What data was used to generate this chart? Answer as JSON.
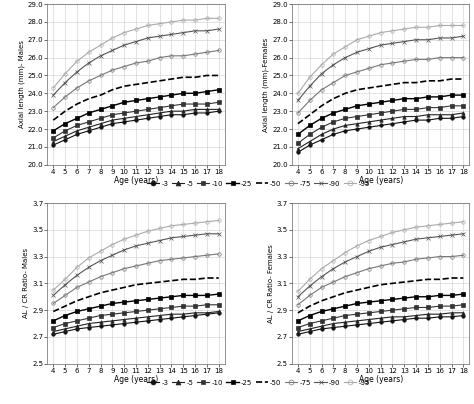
{
  "ages": [
    4,
    5,
    6,
    7,
    8,
    9,
    10,
    11,
    12,
    13,
    14,
    15,
    16,
    17,
    18
  ],
  "males_al": {
    "p3": [
      21.1,
      21.4,
      21.7,
      21.9,
      22.1,
      22.3,
      22.4,
      22.5,
      22.6,
      22.7,
      22.8,
      22.8,
      22.9,
      22.9,
      23.0
    ],
    "p5": [
      21.3,
      21.6,
      21.9,
      22.1,
      22.3,
      22.5,
      22.6,
      22.7,
      22.8,
      22.9,
      23.0,
      23.0,
      23.1,
      23.1,
      23.1
    ],
    "p10": [
      21.5,
      21.9,
      22.2,
      22.4,
      22.6,
      22.8,
      22.9,
      23.0,
      23.1,
      23.2,
      23.3,
      23.4,
      23.4,
      23.4,
      23.5
    ],
    "p25": [
      21.9,
      22.3,
      22.6,
      22.9,
      23.1,
      23.3,
      23.5,
      23.6,
      23.7,
      23.8,
      23.9,
      24.0,
      24.0,
      24.1,
      24.2
    ],
    "p50": [
      22.5,
      23.0,
      23.4,
      23.7,
      23.9,
      24.2,
      24.4,
      24.5,
      24.6,
      24.7,
      24.8,
      24.9,
      24.9,
      25.0,
      25.0
    ],
    "p75": [
      23.2,
      23.8,
      24.3,
      24.7,
      25.0,
      25.3,
      25.5,
      25.7,
      25.8,
      26.0,
      26.1,
      26.1,
      26.2,
      26.3,
      26.4
    ],
    "p90": [
      23.9,
      24.6,
      25.2,
      25.7,
      26.1,
      26.4,
      26.7,
      26.9,
      27.1,
      27.2,
      27.3,
      27.4,
      27.5,
      27.5,
      27.6
    ],
    "p95": [
      24.3,
      25.1,
      25.8,
      26.3,
      26.7,
      27.1,
      27.4,
      27.6,
      27.8,
      27.9,
      28.0,
      28.1,
      28.1,
      28.2,
      28.2
    ]
  },
  "females_al": {
    "p3": [
      20.7,
      21.1,
      21.4,
      21.7,
      21.9,
      22.0,
      22.1,
      22.2,
      22.3,
      22.4,
      22.5,
      22.5,
      22.6,
      22.6,
      22.7
    ],
    "p5": [
      20.9,
      21.3,
      21.7,
      22.0,
      22.2,
      22.3,
      22.4,
      22.5,
      22.6,
      22.7,
      22.7,
      22.8,
      22.8,
      22.8,
      22.9
    ],
    "p10": [
      21.2,
      21.7,
      22.1,
      22.4,
      22.6,
      22.7,
      22.8,
      22.9,
      23.0,
      23.1,
      23.1,
      23.2,
      23.2,
      23.3,
      23.3
    ],
    "p25": [
      21.7,
      22.2,
      22.6,
      22.9,
      23.1,
      23.3,
      23.4,
      23.5,
      23.6,
      23.7,
      23.7,
      23.8,
      23.8,
      23.9,
      23.9
    ],
    "p50": [
      22.3,
      22.8,
      23.3,
      23.7,
      24.0,
      24.2,
      24.3,
      24.4,
      24.5,
      24.6,
      24.6,
      24.7,
      24.7,
      24.8,
      24.8
    ],
    "p75": [
      22.9,
      23.6,
      24.2,
      24.6,
      25.0,
      25.2,
      25.4,
      25.6,
      25.7,
      25.8,
      25.9,
      25.9,
      26.0,
      26.0,
      26.0
    ],
    "p90": [
      23.6,
      24.4,
      25.1,
      25.6,
      26.0,
      26.3,
      26.5,
      26.7,
      26.8,
      26.9,
      27.0,
      27.0,
      27.1,
      27.1,
      27.2
    ],
    "p95": [
      24.0,
      24.9,
      25.6,
      26.2,
      26.6,
      27.0,
      27.2,
      27.4,
      27.5,
      27.6,
      27.7,
      27.7,
      27.8,
      27.8,
      27.8
    ]
  },
  "males_alcr": {
    "p3": [
      2.72,
      2.74,
      2.76,
      2.77,
      2.78,
      2.79,
      2.8,
      2.81,
      2.82,
      2.83,
      2.84,
      2.85,
      2.86,
      2.87,
      2.88
    ],
    "p5": [
      2.74,
      2.76,
      2.78,
      2.8,
      2.81,
      2.82,
      2.83,
      2.84,
      2.85,
      2.86,
      2.87,
      2.87,
      2.88,
      2.88,
      2.89
    ],
    "p10": [
      2.77,
      2.8,
      2.82,
      2.84,
      2.86,
      2.87,
      2.88,
      2.89,
      2.9,
      2.91,
      2.92,
      2.93,
      2.93,
      2.94,
      2.94
    ],
    "p25": [
      2.82,
      2.86,
      2.89,
      2.91,
      2.93,
      2.95,
      2.96,
      2.97,
      2.98,
      2.99,
      3.0,
      3.01,
      3.01,
      3.01,
      3.02
    ],
    "p50": [
      2.89,
      2.93,
      2.97,
      3.0,
      3.03,
      3.05,
      3.07,
      3.09,
      3.1,
      3.11,
      3.12,
      3.13,
      3.13,
      3.14,
      3.14
    ],
    "p75": [
      2.95,
      3.01,
      3.07,
      3.11,
      3.15,
      3.18,
      3.21,
      3.23,
      3.25,
      3.27,
      3.28,
      3.29,
      3.3,
      3.31,
      3.32
    ],
    "p90": [
      3.01,
      3.09,
      3.16,
      3.22,
      3.27,
      3.31,
      3.35,
      3.38,
      3.4,
      3.42,
      3.44,
      3.45,
      3.46,
      3.47,
      3.47
    ],
    "p95": [
      3.05,
      3.13,
      3.22,
      3.29,
      3.34,
      3.39,
      3.43,
      3.46,
      3.49,
      3.51,
      3.53,
      3.54,
      3.55,
      3.56,
      3.57
    ]
  },
  "females_alcr": {
    "p3": [
      2.72,
      2.74,
      2.76,
      2.77,
      2.78,
      2.79,
      2.8,
      2.81,
      2.82,
      2.83,
      2.84,
      2.84,
      2.85,
      2.85,
      2.86
    ],
    "p5": [
      2.74,
      2.76,
      2.78,
      2.8,
      2.81,
      2.82,
      2.83,
      2.84,
      2.85,
      2.85,
      2.86,
      2.87,
      2.87,
      2.88,
      2.88
    ],
    "p10": [
      2.77,
      2.8,
      2.82,
      2.84,
      2.86,
      2.87,
      2.88,
      2.89,
      2.9,
      2.91,
      2.92,
      2.92,
      2.93,
      2.93,
      2.94
    ],
    "p25": [
      2.82,
      2.86,
      2.89,
      2.91,
      2.93,
      2.95,
      2.96,
      2.97,
      2.98,
      2.99,
      3.0,
      3.0,
      3.01,
      3.01,
      3.02
    ],
    "p50": [
      2.88,
      2.93,
      2.97,
      3.0,
      3.03,
      3.05,
      3.07,
      3.09,
      3.1,
      3.11,
      3.12,
      3.13,
      3.13,
      3.14,
      3.14
    ],
    "p75": [
      2.94,
      3.01,
      3.07,
      3.11,
      3.15,
      3.18,
      3.21,
      3.23,
      3.25,
      3.26,
      3.28,
      3.29,
      3.3,
      3.3,
      3.31
    ],
    "p90": [
      3.0,
      3.08,
      3.15,
      3.21,
      3.26,
      3.3,
      3.34,
      3.37,
      3.39,
      3.41,
      3.43,
      3.44,
      3.45,
      3.46,
      3.47
    ],
    "p95": [
      3.04,
      3.13,
      3.21,
      3.27,
      3.33,
      3.38,
      3.42,
      3.45,
      3.48,
      3.5,
      3.52,
      3.53,
      3.54,
      3.55,
      3.56
    ]
  },
  "percentile_labels": [
    "3",
    "5",
    "10",
    "25",
    "50",
    "75",
    "90",
    "95"
  ],
  "al_ylim": [
    20.0,
    29.0
  ],
  "alcr_ylim": [
    2.5,
    3.7
  ],
  "al_yticks": [
    20.0,
    21.0,
    22.0,
    23.0,
    24.0,
    25.0,
    26.0,
    27.0,
    28.0,
    29.0
  ],
  "alcr_yticks": [
    2.5,
    2.7,
    2.9,
    3.1,
    3.3,
    3.5,
    3.7
  ],
  "xticks": [
    4,
    5,
    6,
    7,
    8,
    9,
    10,
    11,
    12,
    13,
    14,
    15,
    16,
    17,
    18
  ],
  "styles": [
    {
      "marker": "o",
      "ls": "-",
      "color": "#111111",
      "mfc": "#111111",
      "ms": 2.5,
      "lw": 0.8
    },
    {
      "marker": "^",
      "ls": "-",
      "color": "#222222",
      "mfc": "#222222",
      "ms": 2.5,
      "lw": 0.8
    },
    {
      "marker": "s",
      "ls": "-",
      "color": "#333333",
      "mfc": "#333333",
      "ms": 2.5,
      "lw": 0.8
    },
    {
      "marker": "s",
      "ls": "-",
      "color": "#000000",
      "mfc": "#000000",
      "ms": 3.0,
      "lw": 1.0
    },
    {
      "marker": "",
      "ls": "--",
      "color": "#000000",
      "mfc": "none",
      "ms": 0,
      "lw": 1.2
    },
    {
      "marker": "o",
      "ls": "-",
      "color": "#777777",
      "mfc": "none",
      "ms": 2.5,
      "lw": 0.8
    },
    {
      "marker": "x",
      "ls": "-",
      "color": "#555555",
      "mfc": "#555555",
      "ms": 2.5,
      "lw": 0.8
    },
    {
      "marker": "o",
      "ls": "-",
      "color": "#aaaaaa",
      "mfc": "none",
      "ms": 2.5,
      "lw": 0.8
    }
  ]
}
